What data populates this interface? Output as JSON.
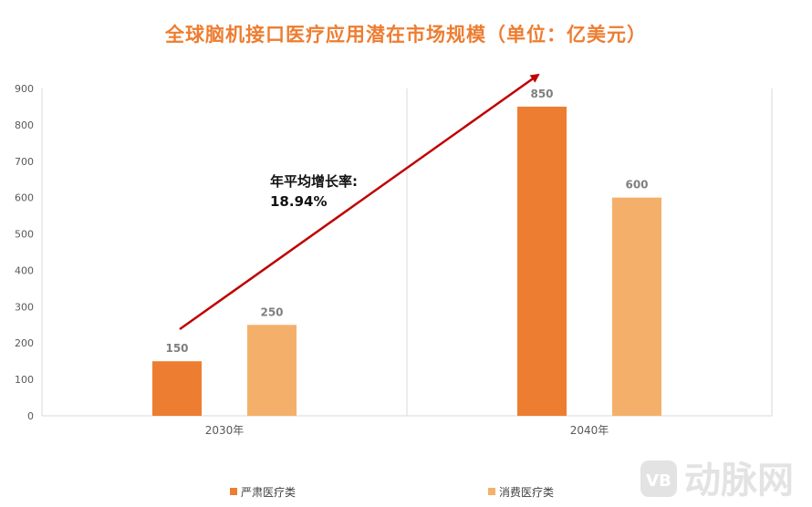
{
  "title": "全球脑机接口医疗应用潜在市场规模（单位：亿美元）",
  "chart_data": {
    "type": "bar",
    "title": "全球脑机接口医疗应用潜在市场规模（单位：亿美元）",
    "categories": [
      "2030年",
      "2040年"
    ],
    "series": [
      {
        "name": "严肃医疗类",
        "values": [
          150,
          850
        ],
        "color": "#ED7D31"
      },
      {
        "name": "消费医疗类",
        "values": [
          250,
          600
        ],
        "color": "#F4B06B"
      }
    ],
    "ylim": [
      0,
      900
    ],
    "yticks": [
      0,
      100,
      200,
      300,
      400,
      500,
      600,
      700,
      800,
      900
    ],
    "grid": false,
    "legend": "bottom",
    "annotation": {
      "line1": "年平均增长率:",
      "line2": "18.94%",
      "arrow_color": "#C00000"
    }
  },
  "watermark": {
    "text": "动脉网",
    "badge": "VB"
  }
}
